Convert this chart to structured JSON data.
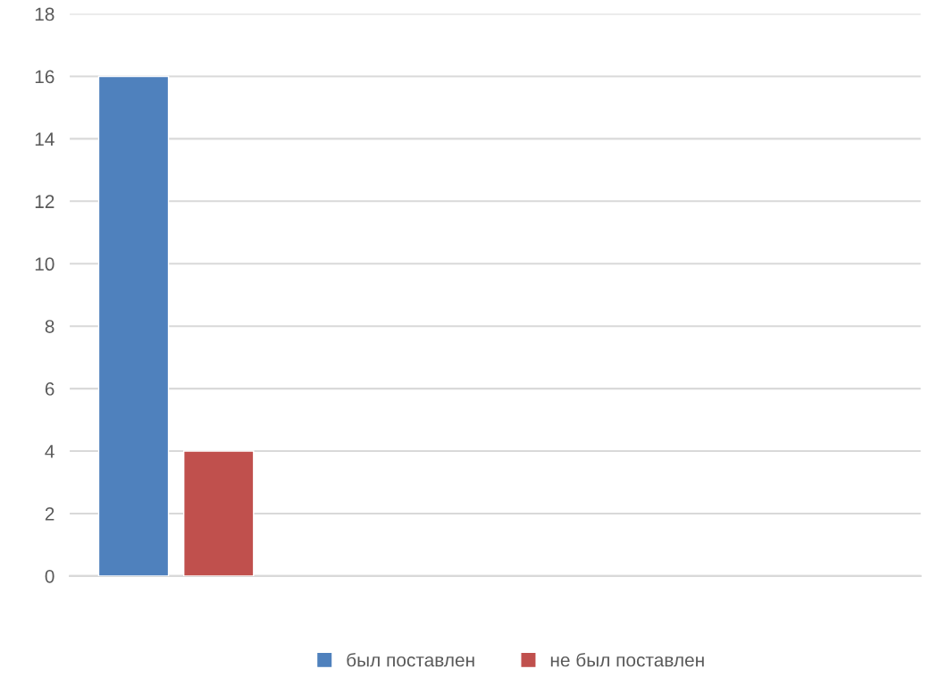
{
  "chart_data": {
    "type": "bar",
    "categories": [
      null
    ],
    "series": [
      {
        "name": "был поставлен",
        "color": "#4f81bd",
        "values": [
          16
        ]
      },
      {
        "name": "не был поставлен",
        "color": "#c0504d",
        "values": [
          4
        ]
      }
    ],
    "ylim": [
      0,
      18
    ],
    "yticks": [
      0,
      2,
      4,
      6,
      8,
      10,
      12,
      14,
      16,
      18
    ],
    "grid": "y",
    "legend": "bottom"
  }
}
